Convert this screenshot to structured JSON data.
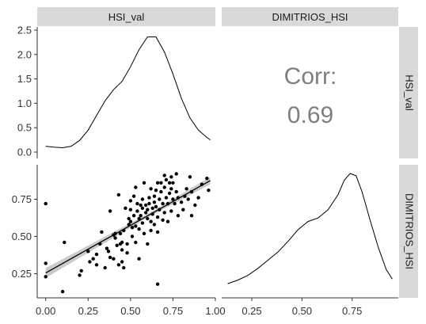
{
  "chart_data": {
    "type": "pairs-plot",
    "variables": [
      "HSI_val",
      "DIMITRIOS_HSI"
    ],
    "grid": false,
    "panels": [
      {
        "position": "top-left",
        "type": "density",
        "variable": "HSI_val",
        "xlim": [
          -0.05,
          1.0
        ],
        "ylim": [
          0.0,
          2.5
        ],
        "y_ticks": [
          "0.0",
          "0.5",
          "1.0",
          "1.5",
          "2.0",
          "2.5"
        ],
        "y_tick_values": [
          0.0,
          0.5,
          1.0,
          1.5,
          2.0,
          2.5
        ],
        "curve": {
          "x": [
            0.0,
            0.05,
            0.1,
            0.15,
            0.2,
            0.25,
            0.3,
            0.35,
            0.4,
            0.45,
            0.5,
            0.55,
            0.6,
            0.65,
            0.7,
            0.75,
            0.8,
            0.85,
            0.9,
            0.95,
            0.97
          ],
          "y": [
            0.12,
            0.1,
            0.09,
            0.12,
            0.24,
            0.45,
            0.75,
            1.05,
            1.28,
            1.45,
            1.75,
            2.1,
            2.36,
            2.36,
            2.05,
            1.6,
            1.1,
            0.7,
            0.45,
            0.3,
            0.25
          ]
        }
      },
      {
        "position": "top-right",
        "type": "correlation",
        "label": "Corr:",
        "value": "0.69"
      },
      {
        "position": "bottom-left",
        "type": "scatter",
        "x_variable": "HSI_val",
        "y_variable": "DIMITRIOS_HSI",
        "xlim": [
          -0.05,
          1.0
        ],
        "ylim": [
          0.12,
          0.96
        ],
        "y_ticks": [
          "0.25",
          "0.50",
          "0.75"
        ],
        "y_tick_values": [
          0.25,
          0.5,
          0.75
        ],
        "regression": {
          "x": [
            0.0,
            0.97
          ],
          "y": [
            0.255,
            0.875
          ]
        },
        "points": [
          [
            0.0,
            0.72
          ],
          [
            0.0,
            0.32
          ],
          [
            0.0,
            0.23
          ],
          [
            0.1,
            0.13
          ],
          [
            0.11,
            0.46
          ],
          [
            0.2,
            0.24
          ],
          [
            0.21,
            0.27
          ],
          [
            0.25,
            0.4
          ],
          [
            0.26,
            0.33
          ],
          [
            0.28,
            0.35
          ],
          [
            0.3,
            0.31
          ],
          [
            0.3,
            0.38
          ],
          [
            0.32,
            0.45
          ],
          [
            0.33,
            0.53
          ],
          [
            0.35,
            0.29
          ],
          [
            0.36,
            0.42
          ],
          [
            0.37,
            0.4
          ],
          [
            0.38,
            0.67
          ],
          [
            0.38,
            0.36
          ],
          [
            0.4,
            0.51
          ],
          [
            0.4,
            0.35
          ],
          [
            0.41,
            0.52
          ],
          [
            0.41,
            0.49
          ],
          [
            0.42,
            0.44
          ],
          [
            0.43,
            0.31
          ],
          [
            0.43,
            0.78
          ],
          [
            0.44,
            0.52
          ],
          [
            0.44,
            0.45
          ],
          [
            0.45,
            0.46
          ],
          [
            0.45,
            0.41
          ],
          [
            0.45,
            0.33
          ],
          [
            0.46,
            0.54
          ],
          [
            0.46,
            0.29
          ],
          [
            0.47,
            0.69
          ],
          [
            0.48,
            0.39
          ],
          [
            0.48,
            0.45
          ],
          [
            0.49,
            0.62
          ],
          [
            0.49,
            0.58
          ],
          [
            0.5,
            0.74
          ],
          [
            0.5,
            0.68
          ],
          [
            0.5,
            0.6
          ],
          [
            0.51,
            0.5
          ],
          [
            0.51,
            0.56
          ],
          [
            0.52,
            0.77
          ],
          [
            0.52,
            0.64
          ],
          [
            0.53,
            0.57
          ],
          [
            0.53,
            0.46
          ],
          [
            0.53,
            0.83
          ],
          [
            0.54,
            0.72
          ],
          [
            0.54,
            0.67
          ],
          [
            0.55,
            0.62
          ],
          [
            0.55,
            0.55
          ],
          [
            0.55,
            0.35
          ],
          [
            0.56,
            0.71
          ],
          [
            0.56,
            0.64
          ],
          [
            0.57,
            0.69
          ],
          [
            0.57,
            0.59
          ],
          [
            0.57,
            0.75
          ],
          [
            0.58,
            0.86
          ],
          [
            0.58,
            0.52
          ],
          [
            0.59,
            0.66
          ],
          [
            0.59,
            0.71
          ],
          [
            0.6,
            0.68
          ],
          [
            0.6,
            0.62
          ],
          [
            0.6,
            0.45
          ],
          [
            0.61,
            0.76
          ],
          [
            0.61,
            0.72
          ],
          [
            0.62,
            0.6
          ],
          [
            0.62,
            0.54
          ],
          [
            0.62,
            0.82
          ],
          [
            0.63,
            0.69
          ],
          [
            0.63,
            0.65
          ],
          [
            0.64,
            0.73
          ],
          [
            0.64,
            0.58
          ],
          [
            0.64,
            0.77
          ],
          [
            0.65,
            0.81
          ],
          [
            0.65,
            0.7
          ],
          [
            0.66,
            0.63
          ],
          [
            0.66,
            0.86
          ],
          [
            0.66,
            0.53
          ],
          [
            0.67,
            0.75
          ],
          [
            0.67,
            0.68
          ],
          [
            0.68,
            0.86
          ],
          [
            0.68,
            0.8
          ],
          [
            0.69,
            0.72
          ],
          [
            0.69,
            0.61
          ],
          [
            0.7,
            0.91
          ],
          [
            0.7,
            0.83
          ],
          [
            0.7,
            0.66
          ],
          [
            0.71,
            0.88
          ],
          [
            0.71,
            0.76
          ],
          [
            0.72,
            0.72
          ],
          [
            0.72,
            0.6
          ],
          [
            0.73,
            0.86
          ],
          [
            0.73,
            0.79
          ],
          [
            0.74,
            0.9
          ],
          [
            0.74,
            0.82
          ],
          [
            0.74,
            0.67
          ],
          [
            0.75,
            0.75
          ],
          [
            0.75,
            0.86
          ],
          [
            0.76,
            0.72
          ],
          [
            0.77,
            0.8
          ],
          [
            0.77,
            0.92
          ],
          [
            0.78,
            0.76
          ],
          [
            0.78,
            0.64
          ],
          [
            0.8,
            0.73
          ],
          [
            0.81,
            0.68
          ],
          [
            0.82,
            0.77
          ],
          [
            0.83,
            0.82
          ],
          [
            0.84,
            0.75
          ],
          [
            0.85,
            0.9
          ],
          [
            0.86,
            0.8
          ],
          [
            0.86,
            0.64
          ],
          [
            0.88,
            0.71
          ],
          [
            0.9,
            0.76
          ],
          [
            0.92,
            0.85
          ],
          [
            0.95,
            0.89
          ],
          [
            0.96,
            0.81
          ],
          [
            0.66,
            0.18
          ]
        ]
      },
      {
        "position": "bottom-right",
        "type": "density",
        "variable": "DIMITRIOS_HSI",
        "xlim": [
          0.1,
          0.98
        ],
        "curve": {
          "x": [
            0.13,
            0.18,
            0.23,
            0.28,
            0.33,
            0.38,
            0.43,
            0.48,
            0.53,
            0.58,
            0.63,
            0.68,
            0.71,
            0.74,
            0.77,
            0.8,
            0.84,
            0.88,
            0.92,
            0.95
          ],
          "y": [
            0.04,
            0.07,
            0.11,
            0.17,
            0.24,
            0.31,
            0.4,
            0.5,
            0.57,
            0.6,
            0.67,
            0.8,
            0.92,
            0.98,
            0.96,
            0.82,
            0.58,
            0.35,
            0.16,
            0.08
          ]
        }
      }
    ],
    "x_ticks_left": [
      "0.00",
      "0.25",
      "0.50",
      "0.75",
      "1.00"
    ],
    "x_tick_values_left": [
      0.0,
      0.25,
      0.5,
      0.75,
      1.0
    ],
    "x_ticks_right": [
      "0.25",
      "0.50",
      "0.75"
    ],
    "x_tick_values_right": [
      0.25,
      0.5,
      0.75
    ],
    "colors": {
      "strip": "#d9d9d9",
      "line": "#000000",
      "band": "#bebebe",
      "corr": "#7f7f7f"
    }
  },
  "strips": {
    "top_left": "HSI_val",
    "top_right": "DIMITRIOS_HSI",
    "right_top": "HSI_val",
    "right_bottom": "DIMITRIOS_HSI"
  },
  "corr": {
    "label": "Corr:",
    "value": "0.69"
  }
}
